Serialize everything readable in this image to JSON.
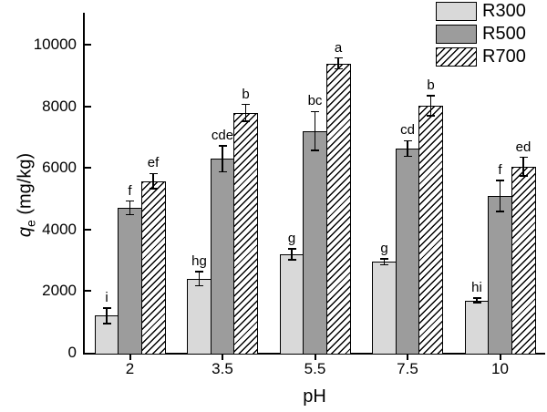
{
  "chart_data": {
    "type": "bar",
    "title": "",
    "xlabel": "pH",
    "ylabel": {
      "symbol": "q",
      "sub": "e",
      "rest": " (mg/kg)"
    },
    "categories": [
      "2",
      "3.5",
      "5.5",
      "7.5",
      "10"
    ],
    "y_ticks": [
      0,
      2000,
      4000,
      6000,
      8000,
      10000
    ],
    "ylim": [
      0,
      10000
    ],
    "grid": false,
    "legend_position": "top-right",
    "series": [
      {
        "name": "R300",
        "pattern": "solid",
        "fill": "#d9d9d9",
        "values": [
          1200,
          2400,
          3200,
          2950,
          1700
        ],
        "errors": [
          250,
          230,
          180,
          100,
          80
        ],
        "sig_labels": [
          "i",
          "hg",
          "g",
          "g",
          "hi"
        ]
      },
      {
        "name": "R500",
        "pattern": "solid",
        "fill": "#9c9c9c",
        "values": [
          4700,
          6300,
          7200,
          6630,
          5090
        ],
        "errors": [
          220,
          420,
          630,
          250,
          500
        ],
        "sig_labels": [
          "f",
          "cde",
          "bc",
          "cd",
          "f"
        ]
      },
      {
        "name": "R700",
        "pattern": "diagonal-hatch",
        "fill": "#ffffff",
        "values": [
          5570,
          7790,
          9390,
          8020,
          6040
        ],
        "errors": [
          250,
          270,
          180,
          330,
          300
        ],
        "sig_labels": [
          "ef",
          "b",
          "a",
          "b",
          "ed"
        ]
      }
    ],
    "colors": {
      "axis": "#000000",
      "bar_border": "#000000",
      "error_bar": "#000000",
      "hatch_line": "#000000",
      "background": "#ffffff"
    }
  }
}
